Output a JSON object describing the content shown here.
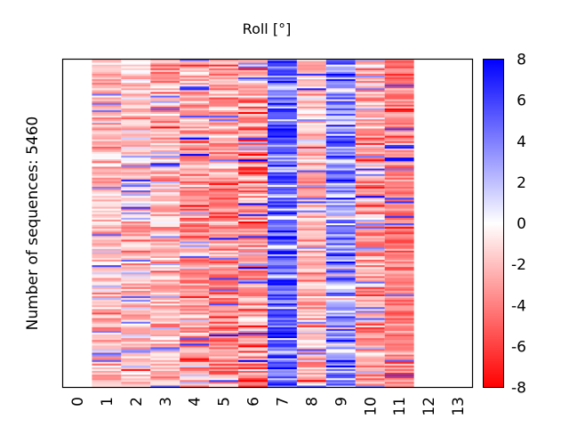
{
  "chart_data": {
    "type": "heatmap",
    "title": "Roll [°]",
    "xlabel": "",
    "ylabel": "Number of sequences: 5460",
    "n_sequences": 5460,
    "x_ticks": [
      "0",
      "1",
      "2",
      "3",
      "4",
      "5",
      "6",
      "7",
      "8",
      "9",
      "10",
      "11",
      "12",
      "13"
    ],
    "x_range": [
      0,
      13
    ],
    "colorbar": {
      "min": -8,
      "max": 8,
      "ticks": [
        "8",
        "6",
        "4",
        "2",
        "0",
        "-2",
        "-4",
        "-6",
        "-8"
      ],
      "colormap": "bwr_reversed",
      "low_color": "#ff0000",
      "mid_color": "#ffffff",
      "high_color": "#0000ff"
    },
    "columns": [
      {
        "position": 1,
        "approx_mean": -2.0,
        "approx_spread": 1.5
      },
      {
        "position": 2,
        "approx_mean": -1.6,
        "approx_spread": 1.6
      },
      {
        "position": 3,
        "approx_mean": -2.3,
        "approx_spread": 1.6
      },
      {
        "position": 4,
        "approx_mean": -3.2,
        "approx_spread": 1.9
      },
      {
        "position": 5,
        "approx_mean": -3.6,
        "approx_spread": 1.8
      },
      {
        "position": 6,
        "approx_mean": -3.6,
        "approx_spread": 2.4
      },
      {
        "position": 7,
        "approx_mean": 5.2,
        "approx_spread": 2.0
      },
      {
        "position": 8,
        "approx_mean": -2.2,
        "approx_spread": 1.5
      },
      {
        "position": 9,
        "approx_mean": 3.4,
        "approx_spread": 2.4
      },
      {
        "position": 10,
        "approx_mean": -2.4,
        "approx_spread": 1.9
      },
      {
        "position": 11,
        "approx_mean": -4.0,
        "approx_spread": 1.2
      }
    ],
    "grid": false,
    "legend": "colorbar-right"
  }
}
